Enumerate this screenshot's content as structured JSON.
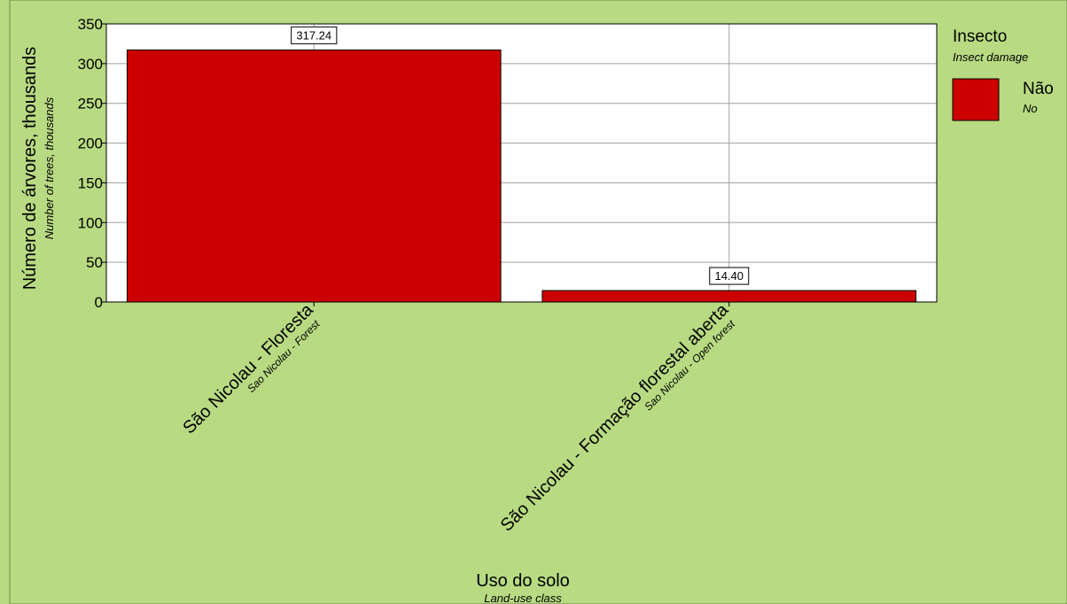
{
  "chart_data": {
    "type": "bar",
    "categories": [
      {
        "label": "São Nicolau - Floresta",
        "sublabel": "Sao Nicolau - Forest"
      },
      {
        "label": "São Nicolau - Formação florestal aberta",
        "sublabel": "Sao Nicolau - Open forest"
      }
    ],
    "series": [
      {
        "name": "Não",
        "subname": "No",
        "color": "#cc0000",
        "values": [
          317.24,
          14.4
        ],
        "labels": [
          "317.24",
          "14.40"
        ]
      }
    ],
    "ylim": [
      0,
      350
    ],
    "yticks": [
      0,
      50,
      100,
      150,
      200,
      250,
      300,
      350
    ],
    "ylabel": "Número de árvores, thousands",
    "ylabel_sub": "Number of trees, thousands",
    "xlabel": "Uso do solo",
    "xlabel_sub": "Land-use class",
    "legend": {
      "title": "Insecto",
      "subtitle": "Insect damage",
      "position": "right"
    },
    "grid": true,
    "background_color": "#b8da82",
    "plot_background_color": "#ffffff"
  }
}
